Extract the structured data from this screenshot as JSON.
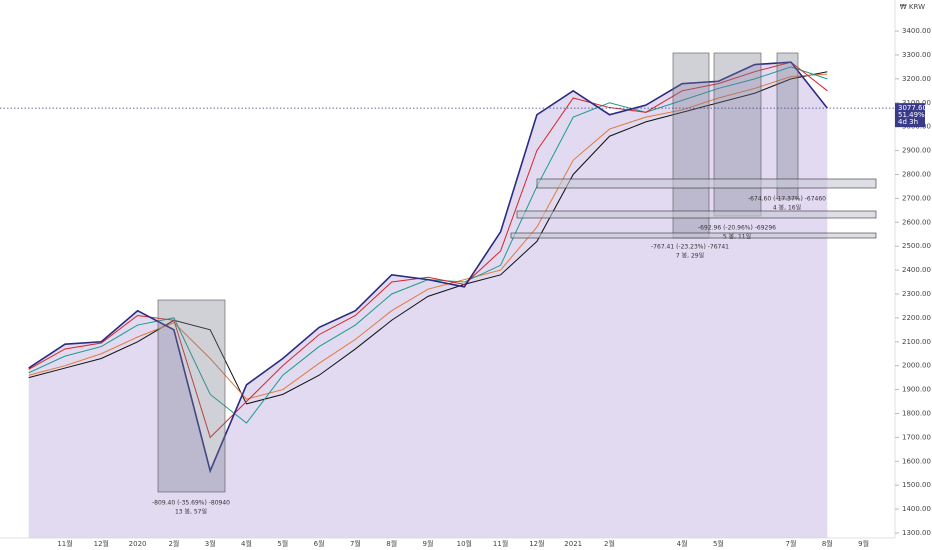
{
  "chart_data": {
    "type": "line",
    "currency_label": "₩ KRW",
    "categories": [
      null,
      "11월",
      "12월",
      "2020",
      "2월",
      "3월",
      "4월",
      "5월",
      "6월",
      "7월",
      "8월",
      "9월",
      "10월",
      "11월",
      "12월",
      "2021",
      "2월",
      null,
      "4월",
      "5월",
      null,
      "7월",
      "8월",
      "9월"
    ],
    "series": [
      {
        "color": "#2b2b80",
        "values": [
          1990,
          2090,
          2100,
          2230,
          2150,
          1560,
          1920,
          2030,
          2160,
          2230,
          2380,
          2360,
          2330,
          2560,
          3050,
          3150,
          3050,
          3090,
          3180,
          3190,
          3260,
          3270,
          3077.6,
          null
        ]
      },
      {
        "color": "#d62828",
        "values": [
          1985,
          2070,
          2095,
          2210,
          2190,
          1700,
          1850,
          2000,
          2130,
          2210,
          2350,
          2370,
          2340,
          2480,
          2900,
          3120,
          3080,
          3060,
          3150,
          3180,
          3230,
          3270,
          3150,
          null
        ]
      },
      {
        "color": "#1f9a8a",
        "values": [
          1970,
          2040,
          2080,
          2170,
          2200,
          1880,
          1760,
          1960,
          2080,
          2170,
          2300,
          2360,
          2350,
          2420,
          2750,
          3040,
          3100,
          3060,
          3110,
          3160,
          3200,
          3250,
          3200,
          null
        ]
      },
      {
        "color": "#e07a3a",
        "values": [
          1960,
          2000,
          2050,
          2120,
          2180,
          2030,
          1860,
          1900,
          2010,
          2110,
          2230,
          2320,
          2360,
          2400,
          2580,
          2860,
          2990,
          3040,
          3070,
          3120,
          3160,
          3210,
          3220,
          null
        ]
      },
      {
        "color": "#111111",
        "values": [
          1950,
          1990,
          2030,
          2100,
          2190,
          2150,
          1840,
          1880,
          1960,
          2070,
          2190,
          2290,
          2340,
          2380,
          2520,
          2800,
          2960,
          3020,
          3060,
          3100,
          3140,
          3200,
          3230,
          null
        ]
      }
    ],
    "fill_color": "#d7cdec",
    "last_price": {
      "value": 3077.6,
      "label": "3077.60",
      "change": "51.49%",
      "time": "4d 3h"
    },
    "annotations": [
      {
        "line1": "-809.40 (-35.69%) -80940",
        "line2": "13 봉, 57일"
      },
      {
        "line1": "-767.41 (-23.23%) -76741",
        "line2": "7 봉, 29일"
      },
      {
        "line1": "-692.96 (-20.96%) -69296",
        "line2": "5 봉, 11일"
      },
      {
        "line1": "-674.60 (-17.37%) -67460",
        "line2": "4 봉, 16일"
      }
    ],
    "ylim": [
      1279,
      3530
    ],
    "yticks": [
      {
        "value": 1300,
        "label": "1300.00"
      },
      {
        "value": 1400,
        "label": "1400.00"
      },
      {
        "value": 1500,
        "label": "1500.00"
      },
      {
        "value": 1600,
        "label": "1600.00"
      },
      {
        "value": 1700,
        "label": "1700.00"
      },
      {
        "value": 1800,
        "label": "1800.00"
      },
      {
        "value": 1900,
        "label": "1900.00"
      },
      {
        "value": 2000,
        "label": "2000.00"
      },
      {
        "value": 2100,
        "label": "2100.00"
      },
      {
        "value": 2200,
        "label": "2200.00"
      },
      {
        "value": 2300,
        "label": "2300.00"
      },
      {
        "value": 2400,
        "label": "2400.00"
      },
      {
        "value": 2500,
        "label": "2500.00"
      },
      {
        "value": 2600,
        "label": "2600.00"
      },
      {
        "value": 2700,
        "label": "2700.00"
      },
      {
        "value": 2800,
        "label": "2800.00"
      },
      {
        "value": 2900,
        "label": "2900.00"
      },
      {
        "value": 3000,
        "label": "3000.00"
      },
      {
        "value": 3100,
        "label": "3100.00"
      },
      {
        "value": 3200,
        "label": "3200.00"
      },
      {
        "value": 3300,
        "label": "3300.00"
      },
      {
        "value": 3400,
        "label": "3400.00"
      }
    ]
  }
}
